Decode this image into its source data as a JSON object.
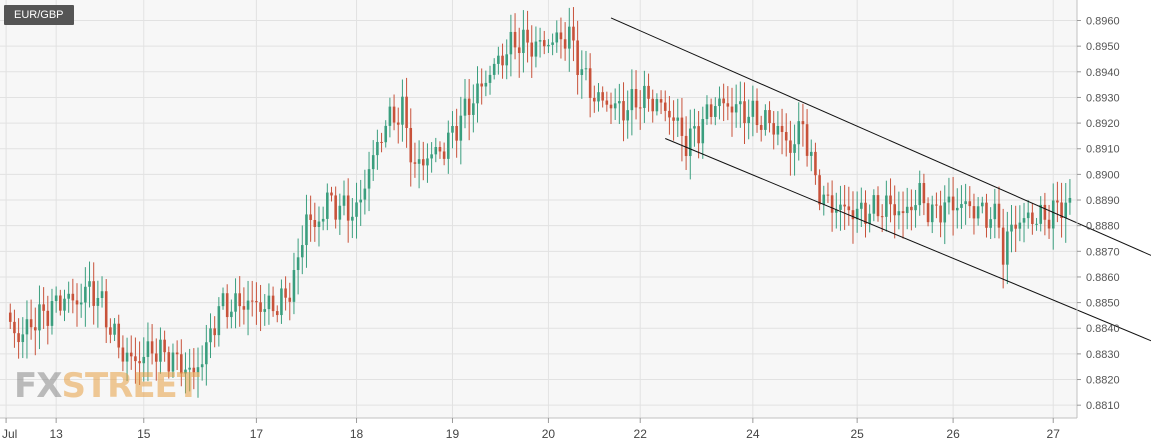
{
  "chart_data": {
    "type": "candlestick",
    "symbol": "EUR/GBP",
    "y_axis": {
      "min": 0.8805,
      "max": 0.8968,
      "ticks": [
        0.881,
        0.882,
        0.883,
        0.884,
        0.885,
        0.886,
        0.887,
        0.888,
        0.889,
        0.89,
        0.891,
        0.892,
        0.893,
        0.894,
        0.895,
        0.896
      ],
      "tick_labels": [
        "0.8810",
        "0.8820",
        "0.8830",
        "0.8840",
        "0.8850",
        "0.8860",
        "0.8870",
        "0.8880",
        "0.8890",
        "0.8900",
        "0.8910",
        "0.8920",
        "0.8930",
        "0.8940",
        "0.8950",
        "0.8960"
      ],
      "side": "right"
    },
    "x_axis": {
      "labels": [
        "Jul",
        "13",
        "15",
        "17",
        "18",
        "19",
        "20",
        "22",
        "24",
        "25",
        "26",
        "27"
      ],
      "label_bars": [
        0,
        12,
        33,
        60,
        84,
        107,
        130,
        152,
        179,
        204,
        227,
        251
      ]
    },
    "grid": true,
    "colors": {
      "up": "#3a9e7e",
      "down": "#c8523a",
      "background": "#f7f7f7",
      "grid": "#e2e2e2"
    },
    "anchors": [
      [
        0,
        0.8844
      ],
      [
        3,
        0.8836
      ],
      [
        6,
        0.8842
      ],
      [
        11,
        0.8848
      ],
      [
        14,
        0.8852
      ],
      [
        17,
        0.885
      ],
      [
        20,
        0.8856
      ],
      [
        23,
        0.8849
      ],
      [
        25,
        0.884
      ],
      [
        28,
        0.883
      ],
      [
        31,
        0.8827
      ],
      [
        35,
        0.8832
      ],
      [
        40,
        0.8828
      ],
      [
        45,
        0.8822
      ],
      [
        48,
        0.8832
      ],
      [
        51,
        0.8848
      ],
      [
        55,
        0.8849
      ],
      [
        58,
        0.885
      ],
      [
        63,
        0.8848
      ],
      [
        67,
        0.8851
      ],
      [
        70,
        0.8865
      ],
      [
        72,
        0.8885
      ],
      [
        74,
        0.8878
      ],
      [
        77,
        0.889
      ],
      [
        80,
        0.8887
      ],
      [
        84,
        0.8885
      ],
      [
        87,
        0.8902
      ],
      [
        91,
        0.892
      ],
      [
        95,
        0.8925
      ],
      [
        98,
        0.8902
      ],
      [
        101,
        0.8907
      ],
      [
        105,
        0.891
      ],
      [
        109,
        0.8922
      ],
      [
        113,
        0.8932
      ],
      [
        117,
        0.8942
      ],
      [
        122,
        0.8952
      ],
      [
        127,
        0.895
      ],
      [
        131,
        0.8952
      ],
      [
        135,
        0.8954
      ],
      [
        138,
        0.894
      ],
      [
        141,
        0.893
      ],
      [
        144,
        0.8928
      ],
      [
        148,
        0.8925
      ],
      [
        152,
        0.893
      ],
      [
        156,
        0.8928
      ],
      [
        160,
        0.8922
      ],
      [
        163,
        0.8912
      ],
      [
        166,
        0.8918
      ],
      [
        170,
        0.8928
      ],
      [
        175,
        0.8926
      ],
      [
        180,
        0.8922
      ],
      [
        185,
        0.8918
      ],
      [
        188,
        0.891
      ],
      [
        191,
        0.892
      ],
      [
        194,
        0.8897
      ],
      [
        197,
        0.8888
      ],
      [
        200,
        0.8887
      ],
      [
        204,
        0.8885
      ],
      [
        208,
        0.8886
      ],
      [
        212,
        0.8888
      ],
      [
        215,
        0.8884
      ],
      [
        219,
        0.8892
      ],
      [
        222,
        0.8884
      ],
      [
        225,
        0.8888
      ],
      [
        230,
        0.8888
      ],
      [
        234,
        0.8885
      ],
      [
        238,
        0.8882
      ],
      [
        239,
        0.8868
      ],
      [
        241,
        0.888
      ],
      [
        245,
        0.8883
      ],
      [
        249,
        0.8883
      ],
      [
        253,
        0.8888
      ],
      [
        255,
        0.8888
      ]
    ],
    "channel_lines": [
      {
        "from": [
          145,
          0.8961
        ],
        "to": [
          282,
          0.8863
        ]
      },
      {
        "from": [
          158,
          0.8914
        ],
        "to": [
          282,
          0.883
        ]
      }
    ]
  },
  "symbol_label": "EUR/GBP",
  "watermark": {
    "part1": "FX",
    "part2": "STREET"
  }
}
